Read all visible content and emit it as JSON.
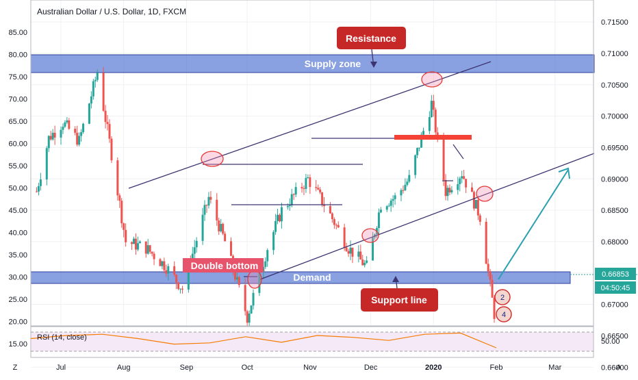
{
  "chart_data": {
    "type": "candlestick",
    "title": "Australian Dollar / U.S. Dollar, 1D, FXCM",
    "left_axis_ticks": [
      "85.00",
      "80.00",
      "75.00",
      "70.00",
      "65.00",
      "60.00",
      "55.00",
      "50.00",
      "45.00",
      "40.00",
      "35.00",
      "30.00",
      "25.00",
      "20.00",
      "15.00"
    ],
    "right_axis_ticks": [
      "0.71500",
      "0.71000",
      "0.70500",
      "0.70000",
      "0.69500",
      "0.69000",
      "0.68500",
      "0.68000",
      "0.67500",
      "0.67000",
      "0.66500",
      "0.66000"
    ],
    "right_axis_range": [
      0.6585,
      0.7185
    ],
    "x_tick_labels": [
      "Jul",
      "Aug",
      "Sep",
      "Oct",
      "Nov",
      "Dec",
      "2020",
      "Feb",
      "Mar"
    ],
    "x_tick_dates": [
      "2019-07-01",
      "2019-08-01",
      "2019-09-01",
      "2019-10-01",
      "2019-11-01",
      "2019-12-01",
      "2020-01-01",
      "2020-02-01",
      "2020-03-01"
    ],
    "current_price": "0.66853",
    "countdown": "04:50:45",
    "colors": {
      "up": "#26a69a",
      "down": "#ef5350",
      "zone": "#5b7bd5",
      "annotation": "#c62828",
      "trend": "#3c3470",
      "arrow": "#2aa0b0",
      "rsi": "#f57c00"
    },
    "price_path": [
      {
        "date": "2019-06-19",
        "close": 0.688
      },
      {
        "date": "2019-06-25",
        "close": 0.6965
      },
      {
        "date": "2019-07-02",
        "close": 0.699
      },
      {
        "date": "2019-07-10",
        "close": 0.696
      },
      {
        "date": "2019-07-19",
        "close": 0.707
      },
      {
        "date": "2019-07-26",
        "close": 0.694
      },
      {
        "date": "2019-08-02",
        "close": 0.68
      },
      {
        "date": "2019-08-12",
        "close": 0.679
      },
      {
        "date": "2019-08-22",
        "close": 0.676
      },
      {
        "date": "2019-08-30",
        "close": 0.6725
      },
      {
        "date": "2019-09-12",
        "close": 0.687
      },
      {
        "date": "2019-09-20",
        "close": 0.68
      },
      {
        "date": "2019-10-01",
        "close": 0.668
      },
      {
        "date": "2019-10-11",
        "close": 0.679
      },
      {
        "date": "2019-10-18",
        "close": 0.685
      },
      {
        "date": "2019-10-31",
        "close": 0.69
      },
      {
        "date": "2019-11-08",
        "close": 0.686
      },
      {
        "date": "2019-11-20",
        "close": 0.679
      },
      {
        "date": "2019-11-29",
        "close": 0.676
      },
      {
        "date": "2019-12-06",
        "close": 0.686
      },
      {
        "date": "2019-12-13",
        "close": 0.687
      },
      {
        "date": "2019-12-20",
        "close": 0.69
      },
      {
        "date": "2019-12-31",
        "close": 0.702
      },
      {
        "date": "2020-01-07",
        "close": 0.688
      },
      {
        "date": "2020-01-15",
        "close": 0.691
      },
      {
        "date": "2020-01-24",
        "close": 0.684
      },
      {
        "date": "2020-01-31",
        "close": 0.6685
      }
    ],
    "rsi": {
      "label": "RSI (14, close)",
      "ticks": [
        "50.00"
      ],
      "values": [
        55,
        60,
        62,
        55,
        46,
        48,
        58,
        49,
        60,
        57,
        52,
        62,
        64,
        40
      ]
    },
    "annotations": {
      "supply_zone": "Supply zone",
      "demand": "Demand",
      "resistance": "Resistance",
      "support_line": "Support line",
      "double_bottom": "Double bottom"
    },
    "event_markers": [
      "2",
      "4"
    ],
    "corner_left": "Z",
    "corner_right": "A"
  }
}
